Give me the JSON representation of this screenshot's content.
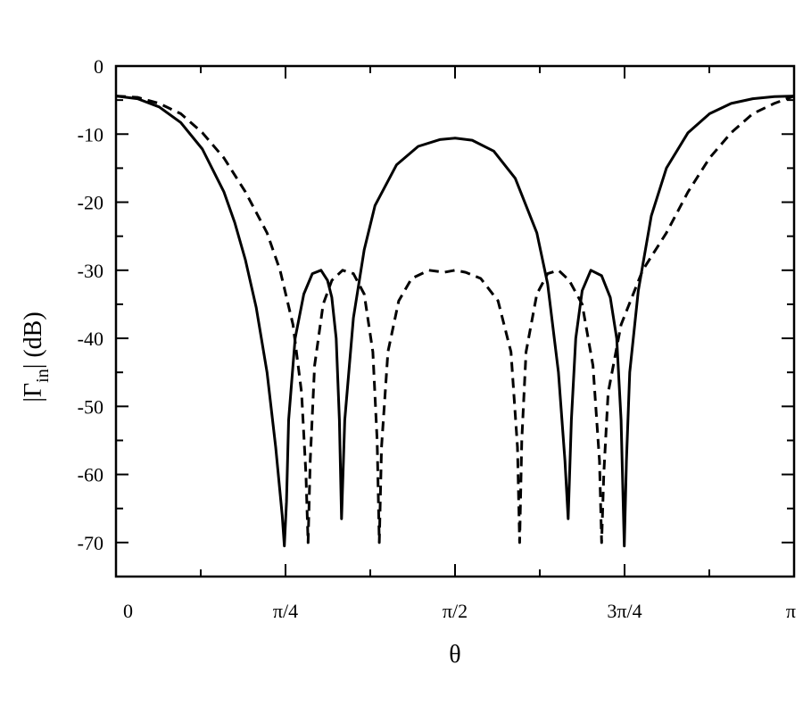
{
  "chart_data": {
    "type": "line",
    "xlabel": "θ",
    "ylabel": "|Γin| (dB)",
    "ylabel_main": "|Γ",
    "ylabel_sub": "in",
    "ylabel_tail": "| (dB)",
    "xlim": [
      0,
      3.14159
    ],
    "ylim": [
      -75,
      0
    ],
    "x_ticks": [
      {
        "value": 0,
        "label": "0"
      },
      {
        "value": 0.7854,
        "label": "π/4"
      },
      {
        "value": 1.5708,
        "label": "π/2"
      },
      {
        "value": 2.3562,
        "label": "3π/4"
      },
      {
        "value": 3.14159,
        "label": "π"
      }
    ],
    "y_ticks": [
      {
        "value": 0,
        "label": "0"
      },
      {
        "value": -10,
        "label": "-10"
      },
      {
        "value": -20,
        "label": "-20"
      },
      {
        "value": -30,
        "label": "-30"
      },
      {
        "value": -40,
        "label": "-40"
      },
      {
        "value": -50,
        "label": "-50"
      },
      {
        "value": -60,
        "label": "-60"
      },
      {
        "value": -70,
        "label": "-70"
      }
    ],
    "grid": false,
    "series": [
      {
        "style": "solid",
        "color": "#000000",
        "x": [
          0.0,
          0.1,
          0.2,
          0.3,
          0.4,
          0.5,
          0.55,
          0.6,
          0.65,
          0.7,
          0.74,
          0.77,
          0.78,
          0.79,
          0.8,
          0.83,
          0.87,
          0.91,
          0.95,
          0.98,
          1.0,
          1.02,
          1.035,
          1.045,
          1.06,
          1.1,
          1.15,
          1.2,
          1.3,
          1.4,
          1.5,
          1.5708,
          1.65,
          1.75,
          1.85,
          1.95,
          2.0,
          2.05,
          2.08,
          2.095,
          2.11,
          2.13,
          2.16,
          2.2,
          2.25,
          2.29,
          2.32,
          2.34,
          2.355,
          2.365,
          2.38,
          2.42,
          2.48,
          2.55,
          2.65,
          2.75,
          2.85,
          2.95,
          3.05,
          3.14159
        ],
        "y": [
          -4.4,
          -4.8,
          -6.0,
          -8.3,
          -12.2,
          -18.5,
          -23.0,
          -28.5,
          -35.5,
          -45.0,
          -56.0,
          -66.0,
          -70.5,
          -64.0,
          -52.0,
          -40.0,
          -33.5,
          -30.5,
          -30.0,
          -31.5,
          -34.0,
          -40.0,
          -52.0,
          -66.5,
          -52.0,
          -37.0,
          -27.0,
          -20.5,
          -14.5,
          -11.8,
          -10.8,
          -10.6,
          -10.9,
          -12.5,
          -16.5,
          -24.5,
          -32.0,
          -45.0,
          -58.0,
          -66.5,
          -52.0,
          -40.0,
          -33.0,
          -30.0,
          -30.8,
          -34.0,
          -40.0,
          -52.0,
          -70.5,
          -58.0,
          -45.0,
          -33.0,
          -22.0,
          -15.0,
          -9.8,
          -7.0,
          -5.5,
          -4.8,
          -4.5,
          -4.4
        ]
      },
      {
        "style": "dashed",
        "color": "#000000",
        "x": [
          0.0,
          0.1,
          0.2,
          0.3,
          0.4,
          0.5,
          0.6,
          0.7,
          0.76,
          0.82,
          0.86,
          0.88,
          0.89,
          0.9,
          0.92,
          0.96,
          1.0,
          1.05,
          1.1,
          1.15,
          1.19,
          1.21,
          1.22,
          1.23,
          1.26,
          1.31,
          1.37,
          1.45,
          1.52,
          1.5708,
          1.62,
          1.69,
          1.77,
          1.83,
          1.86,
          1.87,
          1.88,
          1.9,
          1.95,
          2.0,
          2.05,
          2.1,
          2.16,
          2.21,
          2.24,
          2.25,
          2.26,
          2.28,
          2.34,
          2.44,
          2.55,
          2.65,
          2.75,
          2.85,
          2.95,
          3.05,
          3.14159
        ],
        "y": [
          -4.4,
          -4.6,
          -5.5,
          -7.0,
          -9.8,
          -13.5,
          -18.5,
          -24.5,
          -30.0,
          -38.0,
          -48.0,
          -60.0,
          -70.0,
          -58.0,
          -44.0,
          -35.0,
          -31.5,
          -30.0,
          -30.5,
          -33.5,
          -42.0,
          -55.0,
          -70.0,
          -56.0,
          -42.0,
          -34.5,
          -31.2,
          -30.0,
          -30.3,
          -30.0,
          -30.3,
          -31.2,
          -34.5,
          -42.0,
          -56.0,
          -70.0,
          -55.0,
          -42.0,
          -33.5,
          -30.5,
          -30.0,
          -31.5,
          -35.0,
          -44.0,
          -58.0,
          -70.0,
          -60.0,
          -48.0,
          -38.0,
          -30.0,
          -24.5,
          -18.5,
          -13.5,
          -9.8,
          -7.0,
          -5.5,
          -4.4
        ]
      }
    ]
  }
}
